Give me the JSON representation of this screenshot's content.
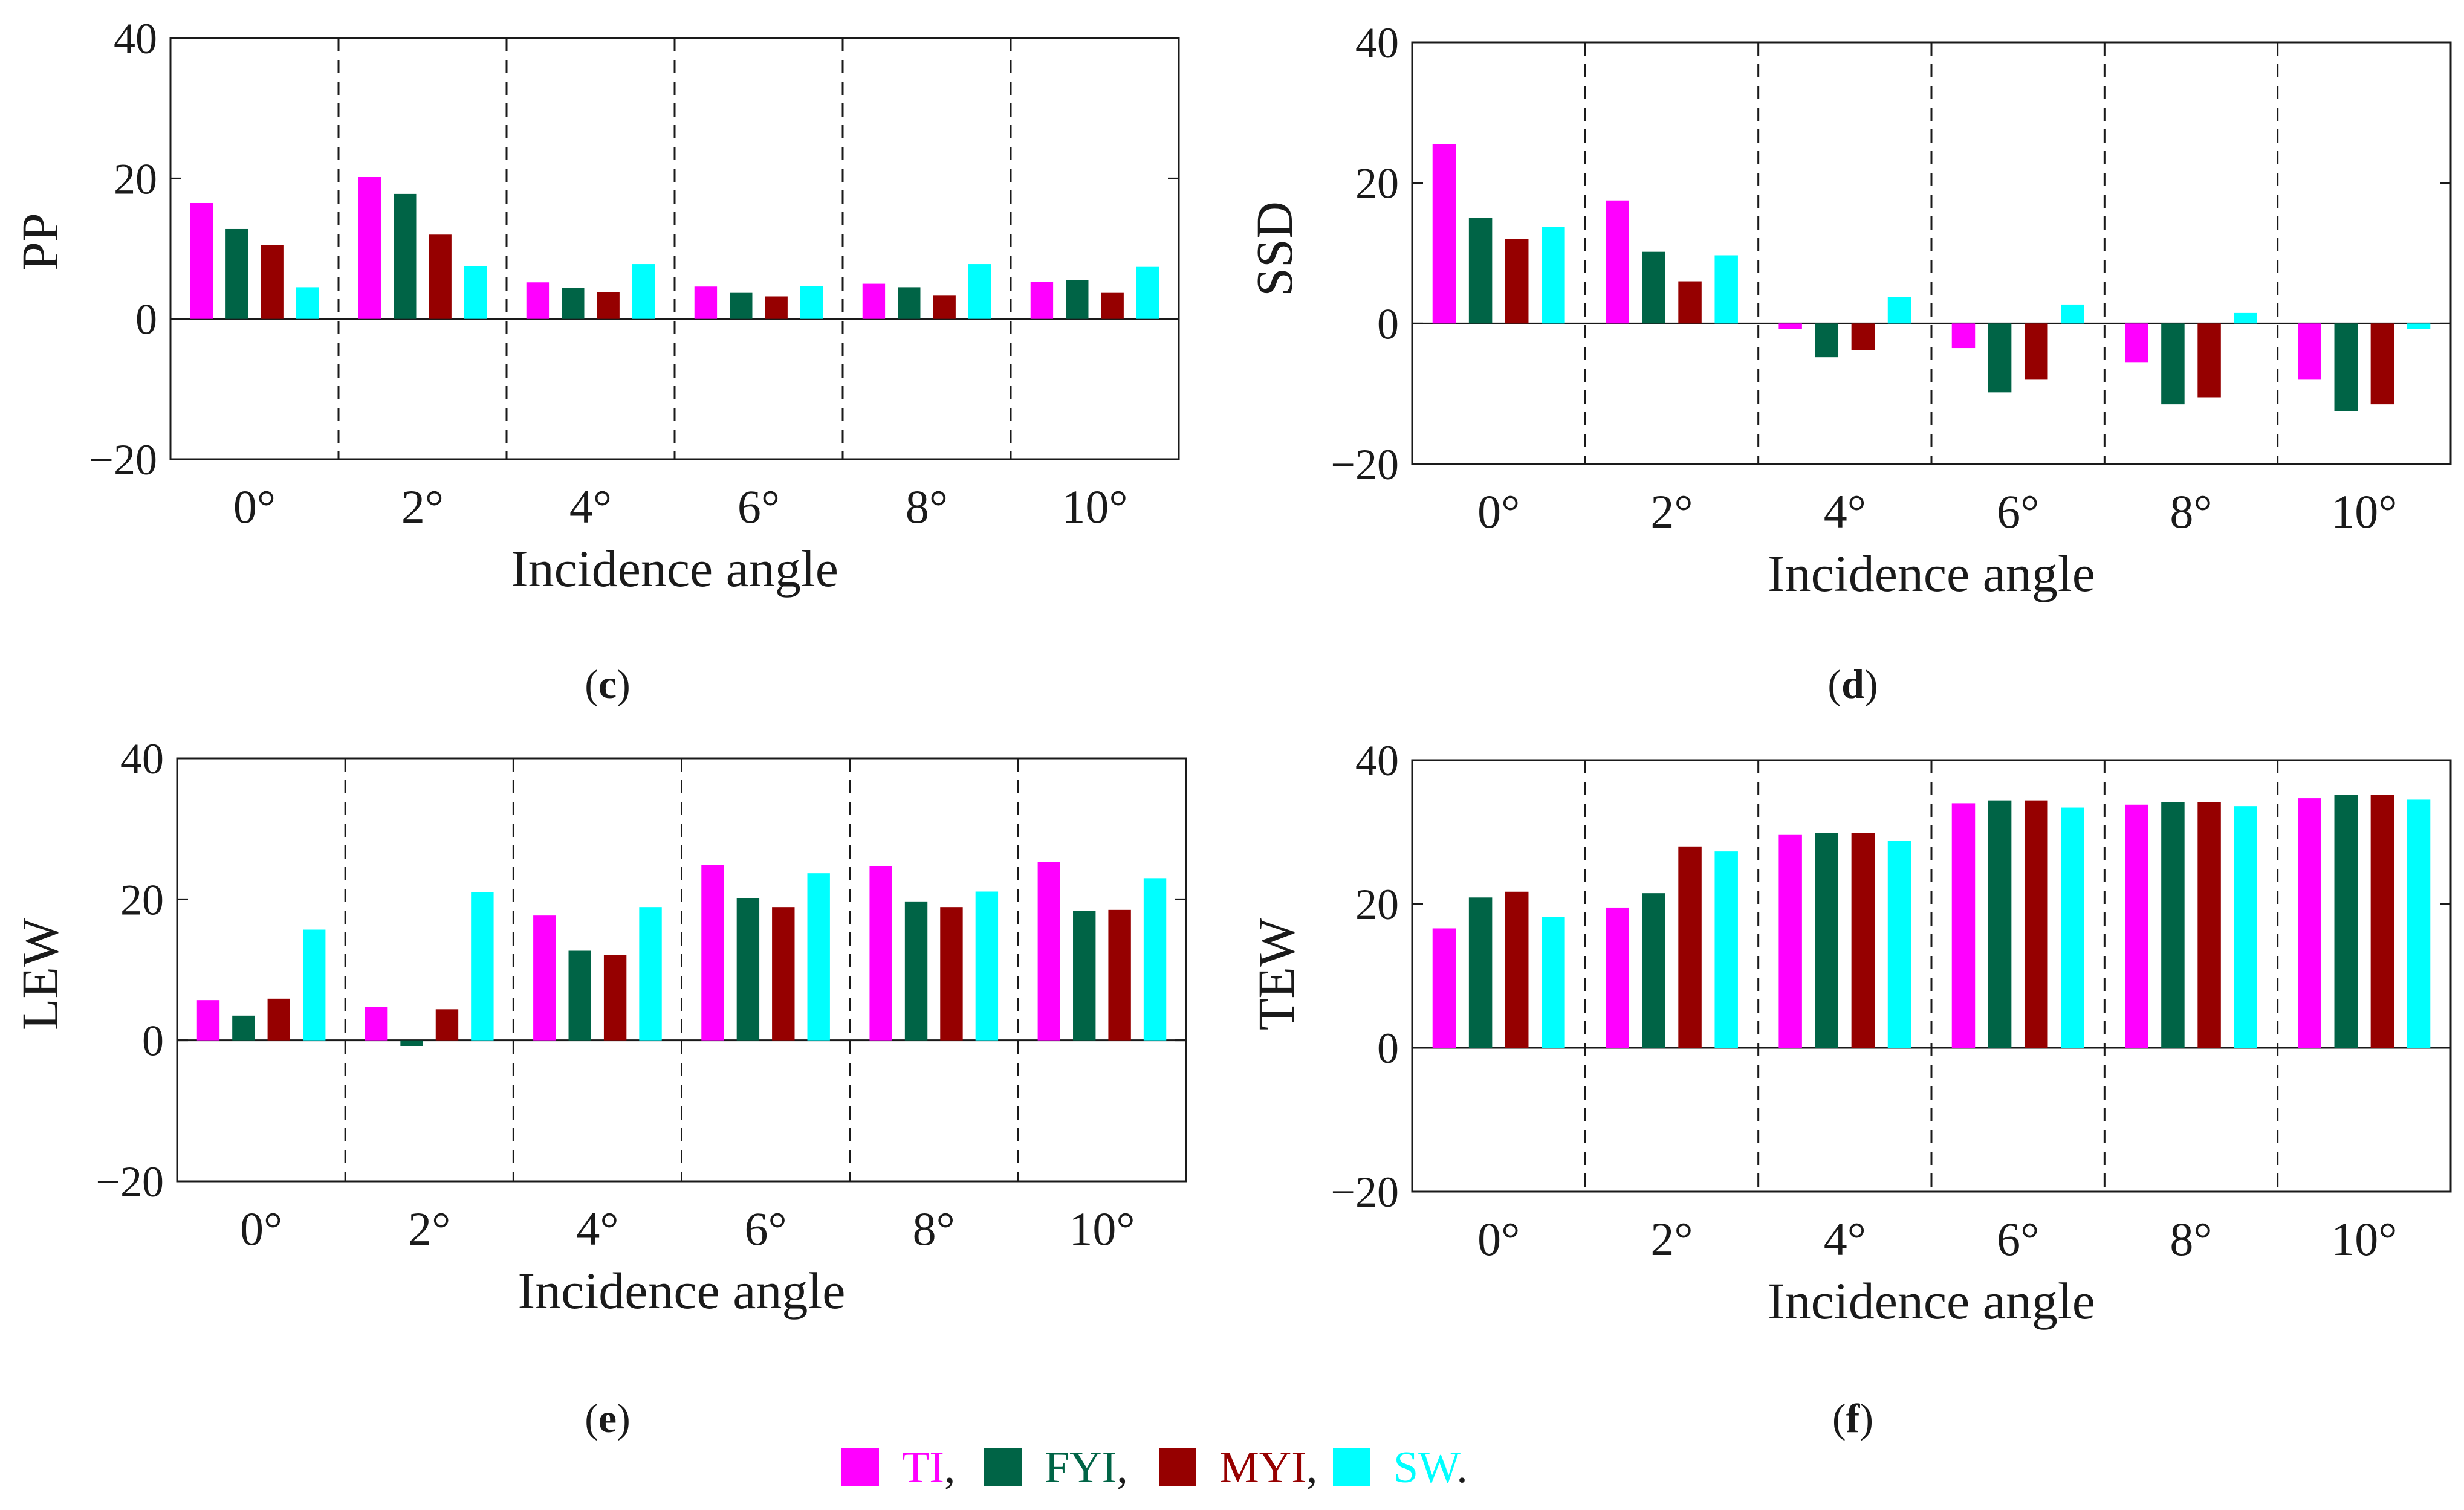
{
  "legend": {
    "entries": [
      {
        "name": "TI",
        "label": "TI",
        "sep": ",",
        "color": "#ff00ff"
      },
      {
        "name": "FYI",
        "label": "FYI",
        "sep": ",",
        "color": "#006446"
      },
      {
        "name": "MYI",
        "label": "MYI",
        "sep": ",",
        "color": "#960000"
      },
      {
        "name": "SW",
        "label": "SW",
        "sep": ".",
        "color": "#00ffff"
      }
    ]
  },
  "chart_data": [
    {
      "type": "bar",
      "panel": "(c)",
      "panel_letter": "c",
      "ylabel": "PP",
      "xlabel": "Incidence angle",
      "categories": [
        "0°",
        "2°",
        "4°",
        "6°",
        "8°",
        "10°"
      ],
      "ylim": [
        -20,
        40
      ],
      "yticks": [
        "40",
        "20",
        "0",
        "−20"
      ],
      "series": [
        {
          "name": "TI",
          "values": [
            16.5,
            20.2,
            5.2,
            4.6,
            5.0,
            5.3
          ]
        },
        {
          "name": "FYI",
          "values": [
            12.8,
            17.8,
            4.4,
            3.7,
            4.5,
            5.5
          ]
        },
        {
          "name": "MYI",
          "values": [
            10.5,
            12.0,
            3.8,
            3.2,
            3.3,
            3.7
          ]
        },
        {
          "name": "SW",
          "values": [
            4.5,
            7.5,
            7.8,
            4.7,
            7.8,
            7.4
          ]
        }
      ]
    },
    {
      "type": "bar",
      "panel": "(d)",
      "panel_letter": "d",
      "ylabel": "SSD",
      "xlabel": "Incidence angle",
      "categories": [
        "0°",
        "2°",
        "4°",
        "6°",
        "8°",
        "10°"
      ],
      "ylim": [
        -20,
        40
      ],
      "yticks": [
        "40",
        "20",
        "0",
        "−20"
      ],
      "series": [
        {
          "name": "TI",
          "values": [
            25.5,
            17.5,
            -0.8,
            -3.5,
            -5.5,
            -8.0
          ]
        },
        {
          "name": "FYI",
          "values": [
            15.0,
            10.2,
            -4.8,
            -9.8,
            -11.5,
            -12.5
          ]
        },
        {
          "name": "MYI",
          "values": [
            12.0,
            6.0,
            -3.8,
            -8.0,
            -10.5,
            -11.5
          ]
        },
        {
          "name": "SW",
          "values": [
            13.7,
            9.7,
            3.8,
            2.7,
            1.5,
            -0.8
          ]
        }
      ]
    },
    {
      "type": "bar",
      "panel": "(e)",
      "panel_letter": "e",
      "ylabel": "LEW",
      "xlabel": "Incidence angle",
      "categories": [
        "0°",
        "2°",
        "4°",
        "6°",
        "8°",
        "10°"
      ],
      "ylim": [
        -20,
        40
      ],
      "yticks": [
        "40",
        "20",
        "0",
        "−20"
      ],
      "series": [
        {
          "name": "TI",
          "values": [
            5.7,
            4.7,
            17.7,
            24.9,
            24.7,
            25.3
          ]
        },
        {
          "name": "FYI",
          "values": [
            3.5,
            -0.8,
            12.7,
            20.2,
            19.7,
            18.4
          ]
        },
        {
          "name": "MYI",
          "values": [
            5.9,
            4.4,
            12.1,
            18.9,
            18.9,
            18.5
          ]
        },
        {
          "name": "SW",
          "values": [
            15.7,
            21.0,
            18.9,
            23.7,
            21.1,
            23.0
          ]
        }
      ]
    },
    {
      "type": "bar",
      "panel": "(f)",
      "panel_letter": "f",
      "ylabel": "TEW",
      "xlabel": "Incidence angle",
      "categories": [
        "0°",
        "2°",
        "4°",
        "6°",
        "8°",
        "10°"
      ],
      "ylim": [
        -20,
        40
      ],
      "yticks": [
        "40",
        "20",
        "0",
        "−20"
      ],
      "series": [
        {
          "name": "TI",
          "values": [
            16.6,
            19.5,
            29.6,
            34.0,
            33.8,
            34.7
          ]
        },
        {
          "name": "FYI",
          "values": [
            20.9,
            21.5,
            29.9,
            34.4,
            34.2,
            35.2
          ]
        },
        {
          "name": "MYI",
          "values": [
            21.7,
            28.0,
            29.9,
            34.4,
            34.2,
            35.2
          ]
        },
        {
          "name": "SW",
          "values": [
            18.2,
            27.3,
            28.8,
            33.4,
            33.6,
            34.5
          ]
        }
      ]
    }
  ]
}
